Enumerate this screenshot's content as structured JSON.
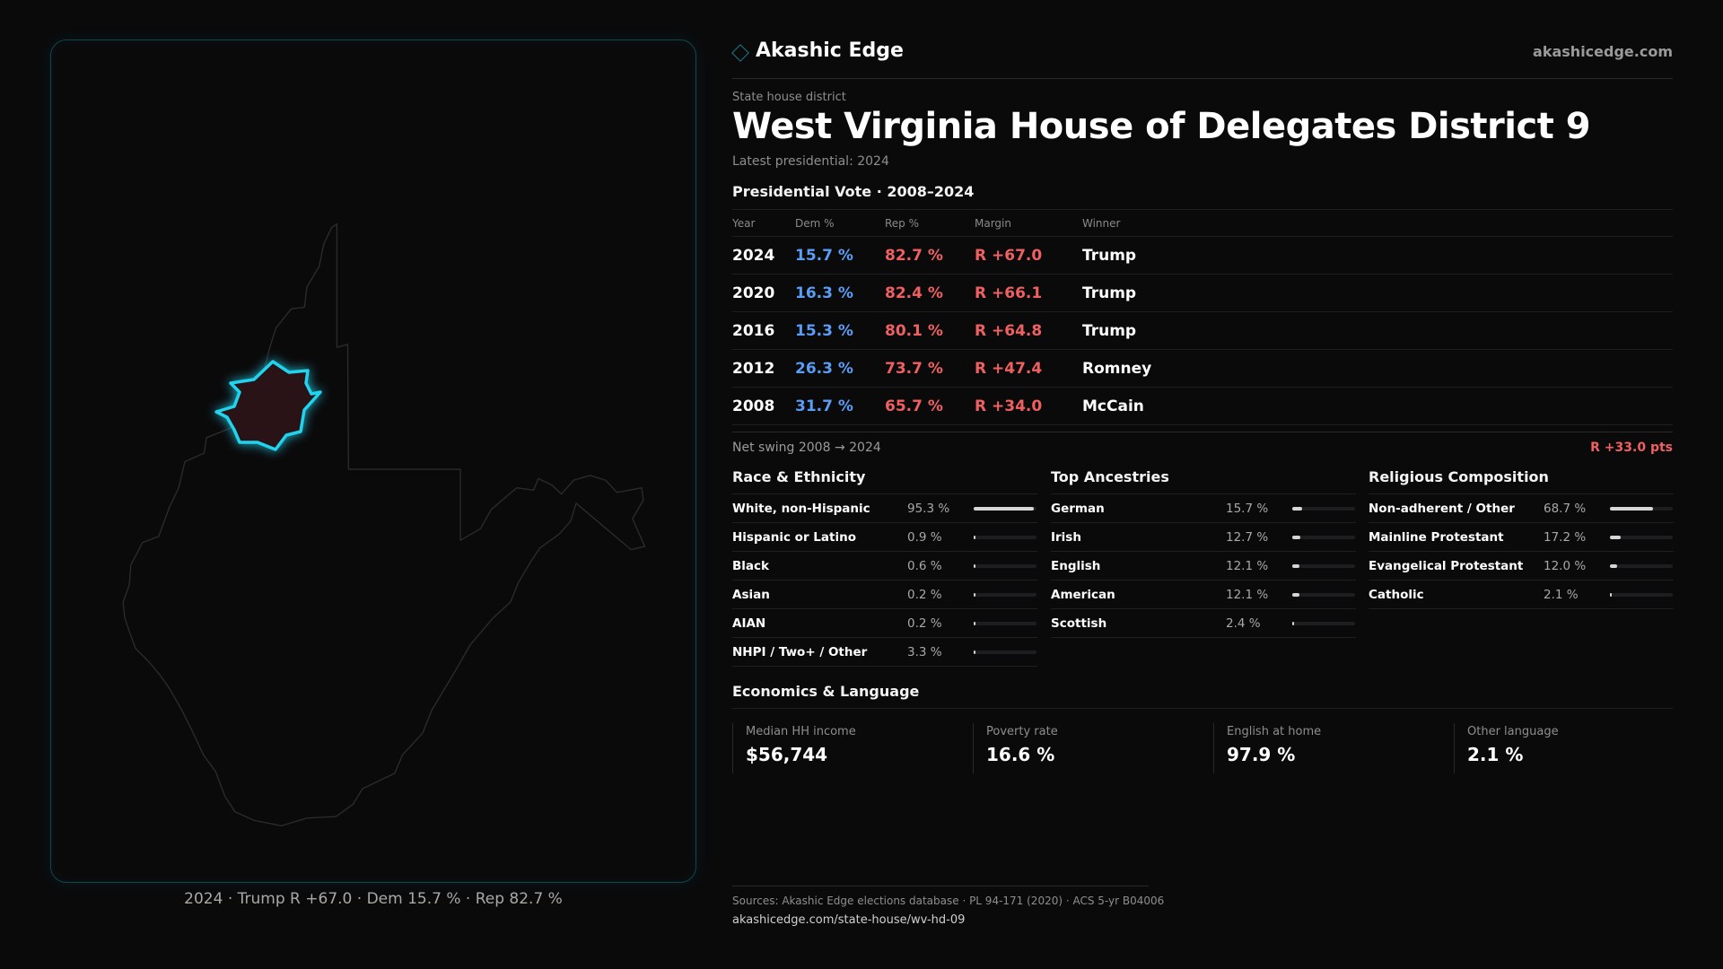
{
  "brand": {
    "name": "Akashic Edge",
    "url": "akashicedge.com",
    "accent": "#2ec5e0"
  },
  "header": {
    "kicker": "State house district",
    "title": "West Virginia House of Delegates District 9",
    "subtitle": "Latest presidential: 2024"
  },
  "map": {
    "caption": "2024 · Trump R +67.0 · Dem 15.7 % · Rep 82.7 %",
    "highlight_color": "#22d3ee",
    "district_fill": "#2a1316"
  },
  "presidential": {
    "heading": "Presidential Vote · 2008–2024",
    "columns": [
      "Year",
      "Dem %",
      "Rep %",
      "Margin",
      "Winner"
    ],
    "rows": [
      {
        "year": "2024",
        "dem": "15.7 %",
        "rep": "82.7 %",
        "margin": "R +67.0",
        "winner": "Trump"
      },
      {
        "year": "2020",
        "dem": "16.3 %",
        "rep": "82.4 %",
        "margin": "R +66.1",
        "winner": "Trump"
      },
      {
        "year": "2016",
        "dem": "15.3 %",
        "rep": "80.1 %",
        "margin": "R +64.8",
        "winner": "Trump"
      },
      {
        "year": "2012",
        "dem": "26.3 %",
        "rep": "73.7 %",
        "margin": "R +47.4",
        "winner": "Romney"
      },
      {
        "year": "2008",
        "dem": "31.7 %",
        "rep": "65.7 %",
        "margin": "R +34.0",
        "winner": "McCain"
      }
    ],
    "colors": {
      "dem": "#5b9cf5",
      "rep": "#ef6060"
    }
  },
  "swing": {
    "label": "Net swing 2008 → 2024",
    "value": "R +33.0 pts"
  },
  "race": {
    "heading": "Race & Ethnicity",
    "items": [
      {
        "label": "White, non-Hispanic",
        "value": "95.3 %",
        "pct": 95.3
      },
      {
        "label": "Hispanic or Latino",
        "value": "0.9 %",
        "pct": 0.9
      },
      {
        "label": "Black",
        "value": "0.6 %",
        "pct": 0.6
      },
      {
        "label": "Asian",
        "value": "0.2 %",
        "pct": 0.2
      },
      {
        "label": "AIAN",
        "value": "0.2 %",
        "pct": 0.2
      },
      {
        "label": "NHPI / Two+ / Other",
        "value": "3.3 %",
        "pct": 3.3
      }
    ]
  },
  "ancestry": {
    "heading": "Top Ancestries",
    "items": [
      {
        "label": "German",
        "value": "15.7 %",
        "pct": 15.7
      },
      {
        "label": "Irish",
        "value": "12.7 %",
        "pct": 12.7
      },
      {
        "label": "English",
        "value": "12.1 %",
        "pct": 12.1
      },
      {
        "label": "American",
        "value": "12.1 %",
        "pct": 12.1
      },
      {
        "label": "Scottish",
        "value": "2.4 %",
        "pct": 2.4
      }
    ]
  },
  "religion": {
    "heading": "Religious Composition",
    "items": [
      {
        "label": "Non-adherent / Other",
        "value": "68.7 %",
        "pct": 68.7
      },
      {
        "label": "Mainline Protestant",
        "value": "17.2 %",
        "pct": 17.2
      },
      {
        "label": "Evangelical Protestant",
        "value": "12.0 %",
        "pct": 12.0
      },
      {
        "label": "Catholic",
        "value": "2.1 %",
        "pct": 2.1
      }
    ]
  },
  "economics": {
    "heading": "Economics & Language",
    "cells": [
      {
        "label": "Median HH income",
        "value": "$56,744"
      },
      {
        "label": "Poverty rate",
        "value": "16.6 %"
      },
      {
        "label": "English at home",
        "value": "97.9 %"
      },
      {
        "label": "Other language",
        "value": "2.1 %"
      }
    ]
  },
  "footer": {
    "sources": "Sources: Akashic Edge elections database · PL 94-171 (2020) · ACS 5-yr B04006",
    "url": "akashicedge.com/state-house/wv-hd-09"
  }
}
